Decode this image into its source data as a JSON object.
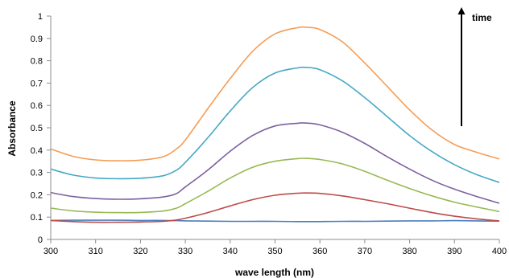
{
  "chart_data": {
    "type": "line",
    "title": "",
    "xlabel": "wave length (nm)",
    "ylabel": "Absorbance",
    "xlim": [
      300,
      400
    ],
    "ylim": [
      0,
      1
    ],
    "x_ticks": [
      300,
      310,
      320,
      330,
      340,
      350,
      360,
      370,
      380,
      390,
      400
    ],
    "y_ticks": [
      0,
      0.1,
      0.2,
      0.3,
      0.4,
      0.5,
      0.6,
      0.7,
      0.8,
      0.9,
      1
    ],
    "y_tick_labels": [
      "0",
      "0.1",
      "0.2",
      "0.3",
      "0.4",
      "0.5",
      "0.6",
      "0.7",
      "0.8",
      "0.9",
      "1"
    ],
    "grid": false,
    "legend": "none",
    "annotation": {
      "text": "time",
      "arrow": "up"
    },
    "x": [
      300,
      305,
      310,
      315,
      320,
      325,
      328,
      330,
      335,
      340,
      345,
      350,
      355,
      357,
      360,
      365,
      370,
      375,
      380,
      385,
      390,
      395,
      400
    ],
    "series": [
      {
        "color": "#4a7ebb",
        "values": [
          0.085,
          0.086,
          0.086,
          0.086,
          0.085,
          0.085,
          0.084,
          0.083,
          0.082,
          0.081,
          0.081,
          0.081,
          0.08,
          0.08,
          0.08,
          0.081,
          0.081,
          0.082,
          0.083,
          0.083,
          0.084,
          0.083,
          0.082
        ]
      },
      {
        "color": "#be4b48",
        "values": [
          0.085,
          0.08,
          0.077,
          0.077,
          0.078,
          0.081,
          0.087,
          0.095,
          0.12,
          0.15,
          0.178,
          0.198,
          0.207,
          0.208,
          0.206,
          0.195,
          0.178,
          0.16,
          0.14,
          0.12,
          0.104,
          0.092,
          0.083
        ]
      },
      {
        "color": "#98b954",
        "values": [
          0.14,
          0.128,
          0.122,
          0.12,
          0.121,
          0.127,
          0.14,
          0.16,
          0.215,
          0.275,
          0.323,
          0.35,
          0.362,
          0.363,
          0.358,
          0.338,
          0.305,
          0.265,
          0.228,
          0.195,
          0.167,
          0.145,
          0.125
        ]
      },
      {
        "color": "#7d60a0",
        "values": [
          0.21,
          0.192,
          0.183,
          0.18,
          0.182,
          0.19,
          0.205,
          0.235,
          0.31,
          0.395,
          0.465,
          0.508,
          0.52,
          0.521,
          0.513,
          0.48,
          0.43,
          0.37,
          0.315,
          0.265,
          0.225,
          0.192,
          0.162
        ]
      },
      {
        "color": "#46aac5",
        "values": [
          0.315,
          0.288,
          0.275,
          0.272,
          0.274,
          0.285,
          0.31,
          0.345,
          0.455,
          0.575,
          0.68,
          0.745,
          0.768,
          0.77,
          0.76,
          0.71,
          0.635,
          0.55,
          0.465,
          0.393,
          0.335,
          0.29,
          0.255
        ]
      },
      {
        "color": "#f59d56",
        "values": [
          0.405,
          0.372,
          0.356,
          0.352,
          0.355,
          0.37,
          0.405,
          0.445,
          0.585,
          0.72,
          0.842,
          0.92,
          0.948,
          0.95,
          0.94,
          0.885,
          0.79,
          0.685,
          0.58,
          0.49,
          0.425,
          0.39,
          0.36
        ]
      }
    ]
  }
}
